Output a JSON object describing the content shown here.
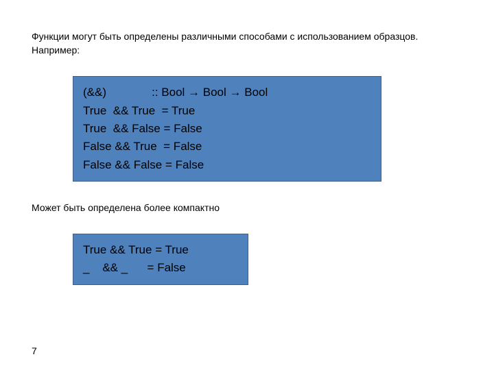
{
  "intro": "Функции могут быть определены различными способами  с использованием образцов. Например:",
  "code1": {
    "l1": "(&&)              :: Bool → Bool → Bool",
    "l2": "True  && True  = True",
    "l3": "True  && False = False",
    "l4": "False && True  = False",
    "l5": "False && False = False"
  },
  "mid": "Может быть определена более  компактно",
  "code2": {
    "l1": "True && True = True",
    "l2": "_    && _      = False"
  },
  "pageNumber": "7",
  "colors": {
    "codeBg": "#4f81bd",
    "codeBorder": "#3a5f8a",
    "text": "#000000",
    "pageBg": "#ffffff"
  },
  "fonts": {
    "body": "Verdana, Arial, sans-serif",
    "introSize": 14,
    "codeSize": 17
  }
}
